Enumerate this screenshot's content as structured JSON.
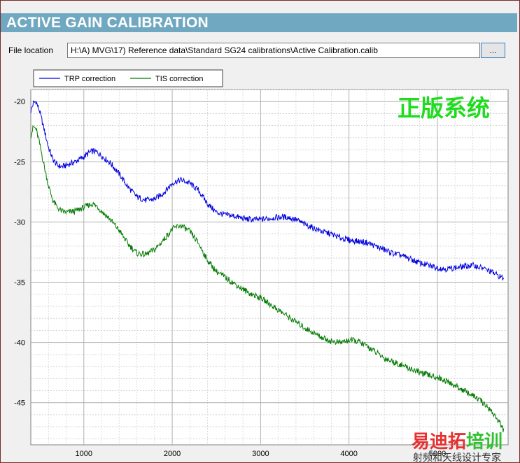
{
  "header": {
    "title": "ACTIVE GAIN CALIBRATION"
  },
  "file": {
    "label": "File location",
    "path": "H:\\A) MVG\\17) Reference data\\Standard SG24 calibrations\\Active Calibration.calib",
    "browse_label": "..."
  },
  "colors": {
    "trp": "#0000e0",
    "tis": "#007a00",
    "header": "#6fa8c0"
  },
  "chart_data": {
    "type": "line",
    "xlim": [
      400,
      5800
    ],
    "ylim": [
      -48.5,
      -19
    ],
    "xticks": [
      1000,
      2000,
      3000,
      4000,
      5000
    ],
    "yticks": [
      -20,
      -25,
      -30,
      -35,
      -40,
      -45
    ],
    "grid": true,
    "legend_position": "top-left",
    "series": [
      {
        "name": "TRP correction",
        "color": "#0000e0",
        "x": [
          400,
          430,
          460,
          500,
          550,
          600,
          650,
          700,
          750,
          800,
          900,
          1000,
          1050,
          1100,
          1150,
          1200,
          1300,
          1400,
          1500,
          1600,
          1700,
          1800,
          1900,
          2000,
          2050,
          2100,
          2200,
          2300,
          2400,
          2500,
          2600,
          2700,
          2800,
          2900,
          3000,
          3100,
          3200,
          3300,
          3400,
          3500,
          3600,
          3700,
          3800,
          3900,
          4000,
          4100,
          4200,
          4300,
          4400,
          4500,
          4600,
          4700,
          4800,
          4900,
          5000,
          5100,
          5200,
          5300,
          5400,
          5500,
          5600,
          5700,
          5750
        ],
        "values": [
          -20.8,
          -20.1,
          -20.0,
          -20.8,
          -22.3,
          -23.8,
          -24.8,
          -25.3,
          -25.4,
          -25.3,
          -25.0,
          -24.6,
          -24.3,
          -24.1,
          -24.2,
          -24.5,
          -25.1,
          -26.0,
          -27.1,
          -27.9,
          -28.2,
          -28.1,
          -27.6,
          -26.8,
          -26.6,
          -26.5,
          -26.8,
          -27.4,
          -28.5,
          -29.2,
          -29.4,
          -29.5,
          -29.7,
          -29.8,
          -29.8,
          -29.7,
          -29.6,
          -29.6,
          -29.8,
          -30.2,
          -30.5,
          -30.8,
          -31.0,
          -31.3,
          -31.5,
          -31.6,
          -31.7,
          -32.0,
          -32.3,
          -32.6,
          -32.8,
          -33.1,
          -33.4,
          -33.6,
          -33.8,
          -33.9,
          -33.8,
          -33.7,
          -33.6,
          -33.8,
          -34.1,
          -34.5,
          -34.7
        ]
      },
      {
        "name": "TIS correction",
        "color": "#007a00",
        "x": [
          400,
          430,
          460,
          500,
          550,
          600,
          650,
          700,
          750,
          800,
          900,
          1000,
          1050,
          1100,
          1150,
          1200,
          1300,
          1400,
          1500,
          1600,
          1700,
          1800,
          1900,
          2000,
          2050,
          2100,
          2200,
          2300,
          2400,
          2500,
          2600,
          2700,
          2800,
          2900,
          3000,
          3100,
          3200,
          3300,
          3400,
          3500,
          3600,
          3700,
          3800,
          3900,
          4000,
          4100,
          4200,
          4300,
          4400,
          4500,
          4600,
          4700,
          4800,
          4900,
          5000,
          5100,
          5200,
          5300,
          5400,
          5500,
          5600,
          5700,
          5750
        ],
        "values": [
          -22.8,
          -22.1,
          -22.3,
          -23.5,
          -25.3,
          -27.0,
          -28.2,
          -28.8,
          -29.1,
          -29.2,
          -29.1,
          -28.8,
          -28.6,
          -28.5,
          -28.7,
          -29.1,
          -29.8,
          -30.7,
          -31.8,
          -32.6,
          -32.7,
          -32.3,
          -31.5,
          -30.6,
          -30.4,
          -30.3,
          -30.8,
          -31.8,
          -33.2,
          -34.1,
          -34.6,
          -35.1,
          -35.6,
          -36.0,
          -36.3,
          -36.8,
          -37.3,
          -37.8,
          -38.3,
          -38.8,
          -39.2,
          -39.6,
          -39.9,
          -40.0,
          -39.8,
          -39.9,
          -40.3,
          -40.8,
          -41.3,
          -41.6,
          -41.9,
          -42.2,
          -42.5,
          -42.7,
          -42.9,
          -43.2,
          -43.6,
          -44.0,
          -44.4,
          -44.9,
          -45.6,
          -46.6,
          -47.3
        ]
      }
    ]
  },
  "watermark": {
    "top_right": "正版系统",
    "logo_red": "易迪拓",
    "logo_green": "培训",
    "sub": "射频和天线设计专家"
  }
}
